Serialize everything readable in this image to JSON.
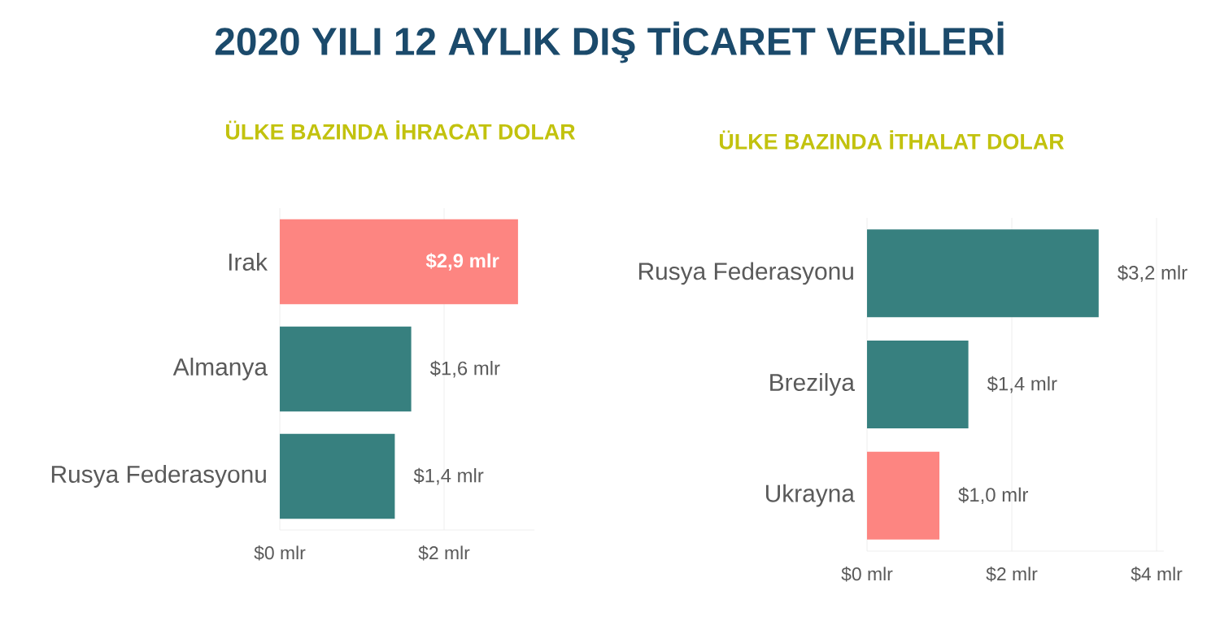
{
  "chart_data": [
    {
      "type": "bar",
      "orientation": "horizontal",
      "title": "2020 YILI 12 AYLIK DIŞ TİCARET VERİLERİ",
      "subtitle": "ÜLKE BAZINDA İHRACAT DOLAR",
      "categories": [
        "Irak",
        "Almanya",
        "Rusya Federasyonu"
      ],
      "values": [
        2.9,
        1.6,
        1.4
      ],
      "colors": [
        "#fd8581",
        "#37807f",
        "#37807f"
      ],
      "value_labels": [
        "$2,9 mlr",
        "$1,6 mlr",
        "$1,4 mlr"
      ],
      "xlim": [
        0,
        3.1
      ],
      "xticks": [
        {
          "value": 0,
          "label": "$0 mlr"
        },
        {
          "value": 2,
          "label": "$2 mlr"
        }
      ],
      "grid": "x"
    },
    {
      "type": "bar",
      "orientation": "horizontal",
      "subtitle": "ÜLKE BAZINDA İTHALAT DOLAR",
      "categories": [
        "Rusya Federasyonu",
        "Brezilya",
        "Ukrayna"
      ],
      "values": [
        3.2,
        1.4,
        1.0
      ],
      "colors": [
        "#37807f",
        "#37807f",
        "#fd8581"
      ],
      "value_labels": [
        "$3,2 mlr",
        "$1,4 mlr",
        "$1,0 mlr"
      ],
      "xlim": [
        0,
        4.1
      ],
      "xticks": [
        {
          "value": 0,
          "label": "$0 mlr"
        },
        {
          "value": 2,
          "label": "$2 mlr"
        },
        {
          "value": 4,
          "label": "$4 mlr"
        }
      ],
      "grid": "x"
    }
  ]
}
